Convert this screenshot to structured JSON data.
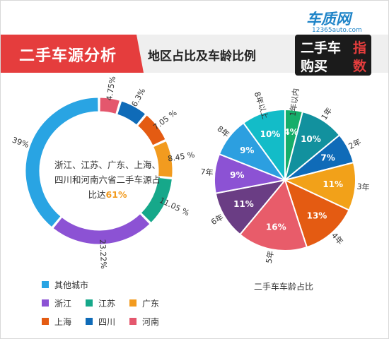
{
  "header": {
    "title": "二手车源分析",
    "subtitle": "地区占比及车龄比例"
  },
  "logo": {
    "site": "车质网",
    "url": "12365auto.com",
    "line1": "二手车",
    "line2": "购买",
    "line1_accent": "指",
    "line2_accent": "数"
  },
  "donut_center": {
    "text": "浙江、江苏、广东、上海、四川和河南六省二手车源占比达",
    "highlight": "61%"
  },
  "pie_caption": "二手车车龄占比",
  "legend": [
    {
      "label": "其他城市",
      "color": "#29a4e3"
    },
    {
      "label": "浙江",
      "color": "#8c52d4"
    },
    {
      "label": "江苏",
      "color": "#16a88a"
    },
    {
      "label": "广东",
      "color": "#f29b1f"
    },
    {
      "label": "上海",
      "color": "#e45b12"
    },
    {
      "label": "四川",
      "color": "#0f6bb8"
    },
    {
      "label": "河南",
      "color": "#e4576d"
    }
  ],
  "chart_data": [
    {
      "type": "pie",
      "variant": "donut",
      "categories": [
        "河南",
        "四川",
        "上海",
        "广东",
        "江苏",
        "浙江",
        "其他城市"
      ],
      "values": [
        4.75,
        6.3,
        7.05,
        8.45,
        11.05,
        23.22,
        39
      ],
      "labels": [
        "4.75%",
        "6.3%",
        "7.05 %",
        "8.45 %",
        "11.05 %",
        "23.22%",
        "39%"
      ],
      "colors": [
        "#e4576d",
        "#0f6bb8",
        "#e45b12",
        "#f29b1f",
        "#16a88a",
        "#8c52d4",
        "#29a4e3"
      ]
    },
    {
      "type": "pie",
      "title": "二手车车龄占比",
      "categories": [
        "1年以内",
        "1年",
        "2年",
        "3年",
        "4年",
        "5年",
        "6年",
        "7年",
        "8年",
        "8年以上"
      ],
      "values": [
        4,
        10,
        7,
        11,
        13,
        16,
        11,
        9,
        9,
        10
      ],
      "labels": [
        "4%",
        "10%",
        "7%",
        "11%",
        "13%",
        "16%",
        "11%",
        "9%",
        "9%",
        "10%"
      ],
      "colors": [
        "#16ae6a",
        "#12919e",
        "#0f6bb8",
        "#f2a119",
        "#e45b12",
        "#e85c6a",
        "#6a3d84",
        "#8c52d4",
        "#2c9fe0",
        "#13bcc8"
      ]
    }
  ]
}
